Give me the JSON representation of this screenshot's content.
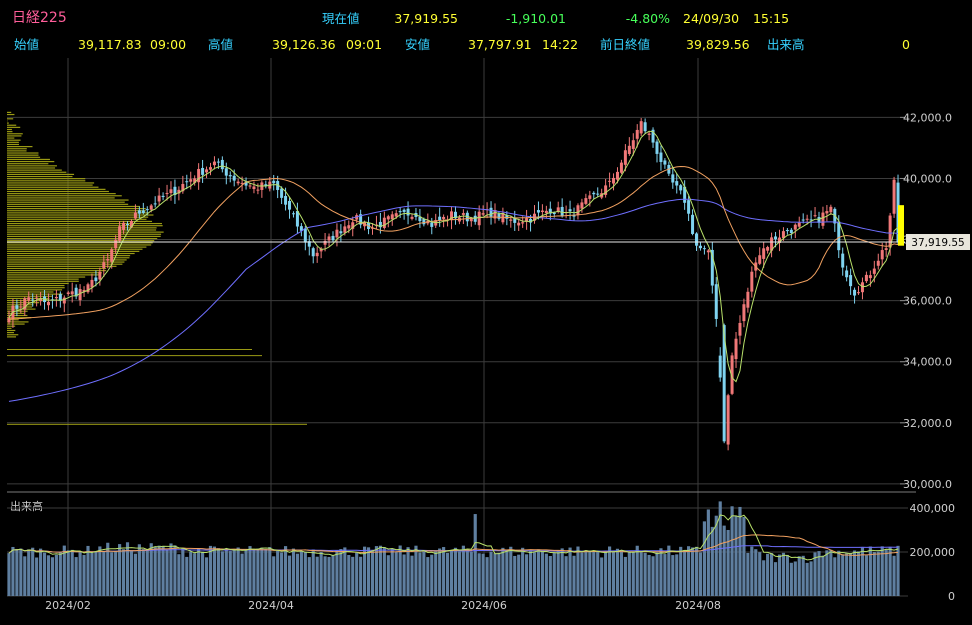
{
  "header": {
    "title": "日経225",
    "current_label": "現在値",
    "current_value": "37,919.55",
    "change": "-1,910.01",
    "change_pct": "-4.80%",
    "date": "24/09/30",
    "time": "15:15",
    "open_label": "始値",
    "open_value": "39,117.83",
    "open_time": "09:00",
    "high_label": "高値",
    "high_value": "39,126.36",
    "high_time": "09:01",
    "low_label": "安値",
    "low_value": "37,797.91",
    "low_time": "14:22",
    "prev_close_label": "前日終値",
    "prev_close_value": "39,829.56",
    "volume_label": "出来高",
    "volume_value": "0"
  },
  "colors": {
    "up": "#f07878",
    "down": "#7fd3f0",
    "ma_short": "#b8e06a",
    "ma_mid": "#f0a060",
    "ma_long": "#6f6fff",
    "volume_profile": "#9a9a14",
    "current_marker": "#ffff00",
    "volume_bar": "#5f7fa0"
  },
  "chart_data": [
    {
      "type": "candlestick",
      "title": "",
      "y_ticks": [
        "42,000.0",
        "40,000.0",
        "38,000.0",
        "36,000.0",
        "34,000.0",
        "32,000.0",
        "30,000.0"
      ],
      "ylim": [
        29800,
        42700
      ],
      "x_ticks": [
        "2024/02",
        "2024/04",
        "2024/06",
        "2024/08"
      ],
      "current_price_label": "37,919.55",
      "current_price": 37919.55,
      "moving_averages": [
        "ma_short",
        "ma_mid",
        "ma_long"
      ],
      "has_volume_profile": true,
      "grid": true,
      "close_series_approx": [
        [
          0,
          35600
        ],
        [
          5,
          36100
        ],
        [
          10,
          35900
        ],
        [
          15,
          36200
        ],
        [
          20,
          36400
        ],
        [
          25,
          37300
        ],
        [
          28,
          38300
        ],
        [
          33,
          38900
        ],
        [
          38,
          39300
        ],
        [
          42,
          39600
        ],
        [
          47,
          40100
        ],
        [
          52,
          40500
        ],
        [
          57,
          40000
        ],
        [
          62,
          39700
        ],
        [
          67,
          39800
        ],
        [
          72,
          38700
        ],
        [
          77,
          37500
        ],
        [
          82,
          38100
        ],
        [
          87,
          38700
        ],
        [
          92,
          38400
        ],
        [
          97,
          38700
        ],
        [
          102,
          38900
        ],
        [
          107,
          38500
        ],
        [
          112,
          38800
        ],
        [
          117,
          38700
        ],
        [
          122,
          38900
        ],
        [
          127,
          38600
        ],
        [
          132,
          38700
        ],
        [
          137,
          39000
        ],
        [
          142,
          38800
        ],
        [
          147,
          39300
        ],
        [
          152,
          39800
        ],
        [
          156,
          40800
        ],
        [
          160,
          41800
        ],
        [
          163,
          41200
        ],
        [
          167,
          40000
        ],
        [
          171,
          39300
        ],
        [
          174,
          37800
        ],
        [
          177,
          37500
        ],
        [
          179,
          35500
        ],
        [
          181,
          31500
        ],
        [
          183,
          34200
        ],
        [
          186,
          35800
        ],
        [
          189,
          37400
        ],
        [
          193,
          38000
        ],
        [
          197,
          38300
        ],
        [
          201,
          38500
        ],
        [
          205,
          38700
        ],
        [
          208,
          39000
        ],
        [
          211,
          37200
        ],
        [
          214,
          36300
        ],
        [
          217,
          36700
        ],
        [
          220,
          37400
        ],
        [
          222,
          37800
        ],
        [
          224,
          39800
        ],
        [
          225,
          37920
        ]
      ]
    },
    {
      "type": "bar",
      "title": "",
      "label": "出来高",
      "y_ticks": [
        "400,000",
        "200,000",
        "0"
      ],
      "ylim": [
        0,
        450000
      ],
      "moving_averages": [
        "ma_short",
        "ma_mid",
        "ma_long"
      ]
    }
  ]
}
